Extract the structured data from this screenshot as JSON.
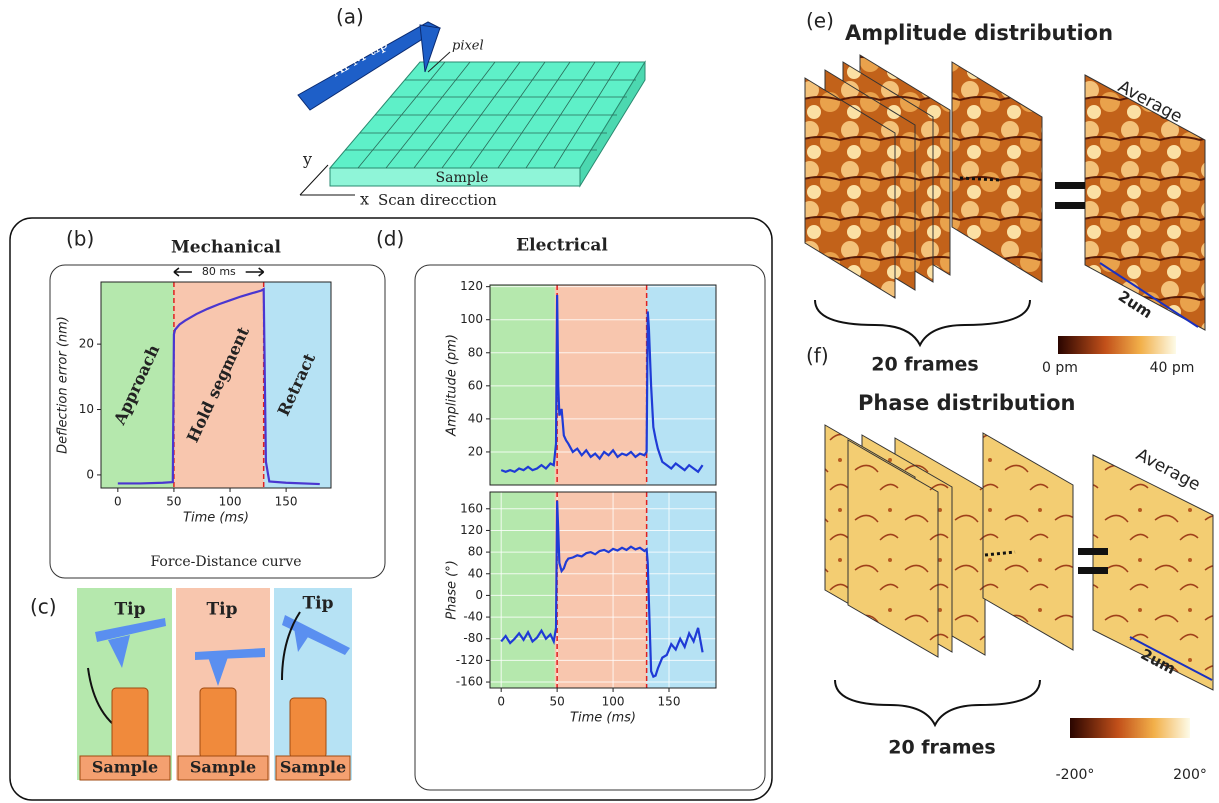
{
  "panels": {
    "a": {
      "label": "(a)",
      "tip": "AFM tip",
      "pixel": "pixel",
      "y": "y",
      "x": "x",
      "scan": "Scan direcction",
      "sample": "Sample"
    },
    "b": {
      "label": "(b)"
    },
    "c": {
      "label": "(c)",
      "tips": [
        "Tip",
        "Tip",
        "Tip"
      ],
      "samples": [
        "Sample",
        "Sample",
        "Sample"
      ]
    },
    "d": {
      "label": "(d)",
      "title": "Electrical"
    },
    "e": {
      "label": "(e)",
      "title": "Amplitude distribution",
      "average": "Average",
      "scale": "2um",
      "frames": "20 frames",
      "cmin": "0 pm",
      "cmax": "40 pm"
    },
    "f": {
      "label": "(f)",
      "title": "Phase distribution",
      "average": "Average",
      "scale": "2um",
      "frames": "20 frames",
      "cmin": "-200°",
      "cmax": "200°"
    }
  },
  "chart_data": [
    {
      "type": "line",
      "title": "Mechanical",
      "caption": "Force-Distance curve",
      "annotation": "80 ms",
      "xlabel": "Time (ms)",
      "ylabel": "Deflection error (nm)",
      "xlim": [
        -15,
        190
      ],
      "ylim": [
        -2,
        29.5
      ],
      "xticks": [
        0,
        50,
        100,
        150
      ],
      "yticks": [
        0,
        10,
        20
      ],
      "grid": false,
      "regions": [
        {
          "label": "Approach",
          "color": "#b5e8ad",
          "x": [
            -15,
            50
          ]
        },
        {
          "label": "Hold segment",
          "color": "#f8c6ae",
          "x": [
            50,
            130
          ]
        },
        {
          "label": "Retract",
          "color": "#b6e2f4",
          "x": [
            130,
            190
          ]
        }
      ],
      "vlines": [
        50,
        130
      ],
      "series": [
        {
          "color": "#4a36d0",
          "x": [
            0,
            20,
            40,
            49,
            50,
            51,
            55,
            60,
            70,
            80,
            90,
            100,
            110,
            120,
            128,
            130,
            131,
            132,
            135,
            150,
            180
          ],
          "values": [
            -1.3,
            -1.3,
            -1.2,
            -1.1,
            21.5,
            22.2,
            23,
            23.6,
            24.6,
            25.4,
            26.1,
            26.7,
            27.3,
            27.8,
            28.2,
            28.4,
            15,
            2,
            -1,
            -1.2,
            -1.4
          ]
        }
      ]
    },
    {
      "type": "line",
      "ylabel": "Amplitude (pm)",
      "xlim": [
        -10,
        192
      ],
      "ylim": [
        0,
        121
      ],
      "yticks": [
        20,
        40,
        60,
        80,
        100,
        120
      ],
      "grid": true,
      "regions": [
        {
          "color": "#b5e8ad",
          "x": [
            -10,
            48
          ]
        },
        {
          "color": "#f8c6ae",
          "x": [
            48,
            130
          ]
        },
        {
          "color": "#b6e2f4",
          "x": [
            130,
            192
          ]
        }
      ],
      "vlines": [
        50,
        130
      ],
      "series": [
        {
          "color": "#1f3bd6",
          "x": [
            0,
            4,
            8,
            12,
            16,
            20,
            24,
            28,
            32,
            36,
            40,
            44,
            47,
            49,
            50,
            51,
            52,
            54,
            56,
            58,
            60,
            64,
            68,
            72,
            76,
            80,
            84,
            88,
            92,
            96,
            100,
            104,
            108,
            112,
            116,
            120,
            124,
            128,
            130,
            131,
            132,
            134,
            136,
            138,
            140,
            144,
            148,
            152,
            156,
            160,
            164,
            168,
            172,
            176,
            180
          ],
          "values": [
            9,
            8,
            9,
            8,
            10,
            9,
            11,
            9,
            10,
            12,
            10,
            13,
            12,
            25,
            115,
            60,
            42,
            46,
            30,
            27,
            25,
            20,
            22,
            18,
            21,
            17,
            19,
            16,
            20,
            18,
            21,
            17,
            19,
            18,
            20,
            17,
            19,
            18,
            20,
            105,
            95,
            60,
            35,
            28,
            22,
            14,
            12,
            10,
            13,
            11,
            9,
            12,
            10,
            8,
            12
          ]
        }
      ]
    },
    {
      "type": "line",
      "xlabel": "Time (ms)",
      "ylabel": "Phase (°)",
      "xlim": [
        -10,
        192
      ],
      "ylim": [
        -171,
        191
      ],
      "xticks": [
        0,
        50,
        100,
        150
      ],
      "yticks": [
        -160,
        -120,
        -80,
        -40,
        0,
        40,
        80,
        120,
        160
      ],
      "grid": true,
      "regions": [
        {
          "color": "#b5e8ad",
          "x": [
            -10,
            48
          ]
        },
        {
          "color": "#f8c6ae",
          "x": [
            48,
            130
          ]
        },
        {
          "color": "#b6e2f4",
          "x": [
            130,
            192
          ]
        }
      ],
      "vlines": [
        50,
        130
      ],
      "series": [
        {
          "color": "#1f3bd6",
          "x": [
            0,
            4,
            8,
            12,
            16,
            20,
            24,
            28,
            32,
            36,
            40,
            44,
            47,
            49,
            50,
            51,
            52,
            54,
            56,
            58,
            60,
            64,
            68,
            72,
            76,
            80,
            84,
            88,
            92,
            96,
            100,
            104,
            108,
            112,
            116,
            120,
            124,
            128,
            130,
            131,
            132,
            134,
            136,
            138,
            140,
            144,
            148,
            152,
            156,
            160,
            164,
            168,
            172,
            176,
            180
          ],
          "values": [
            -85,
            -75,
            -88,
            -80,
            -70,
            -82,
            -68,
            -85,
            -78,
            -65,
            -80,
            -72,
            -85,
            -60,
            175,
            120,
            60,
            45,
            50,
            62,
            68,
            70,
            74,
            72,
            78,
            80,
            76,
            82,
            84,
            80,
            86,
            83,
            88,
            84,
            90,
            85,
            88,
            82,
            85,
            60,
            -10,
            -140,
            -150,
            -148,
            -135,
            -115,
            -110,
            -90,
            -100,
            -80,
            -95,
            -70,
            -85,
            -60,
            -105
          ]
        }
      ]
    }
  ]
}
